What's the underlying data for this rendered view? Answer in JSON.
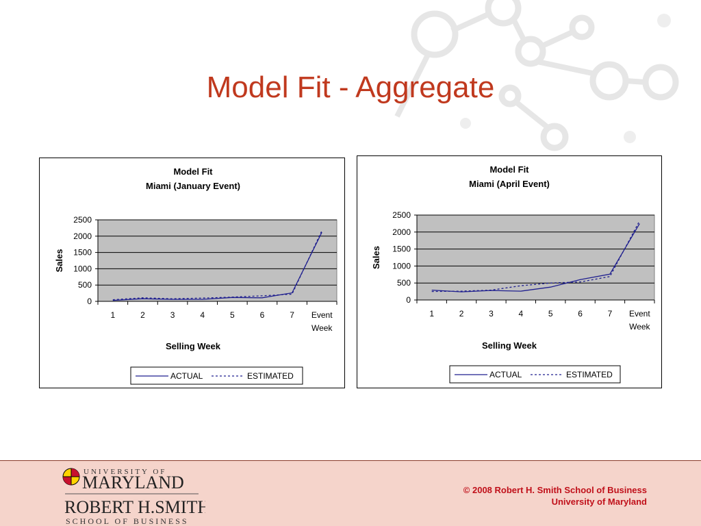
{
  "slide": {
    "title": "Model Fit - Aggregate"
  },
  "chart_data": [
    {
      "type": "line",
      "title": "Model Fit",
      "subtitle": "Miami (January Event)",
      "categories": [
        "1",
        "2",
        "3",
        "4",
        "5",
        "6",
        "7",
        "Event Week"
      ],
      "xlabel": "Selling Week",
      "ylabel": "Sales",
      "ylim": [
        0,
        2500
      ],
      "yticks": [
        "0",
        "500",
        "1000",
        "1500",
        "2000",
        "2500"
      ],
      "grid": true,
      "legend": "bottom",
      "series": [
        {
          "name": "ACTUAL",
          "style": "solid",
          "color": "#1f1f8f",
          "values": [
            30,
            80,
            60,
            60,
            120,
            110,
            260,
            2120
          ]
        },
        {
          "name": "ESTIMATED",
          "style": "dashed",
          "color": "#1f1f8f",
          "values": [
            50,
            110,
            80,
            100,
            130,
            170,
            220,
            2170
          ]
        }
      ]
    },
    {
      "type": "line",
      "title": "Model Fit",
      "subtitle": "Miami (April Event)",
      "categories": [
        "1",
        "2",
        "3",
        "4",
        "5",
        "6",
        "7",
        "Event Week"
      ],
      "xlabel": "Selling Week",
      "ylabel": "Sales",
      "ylim": [
        0,
        2500
      ],
      "yticks": [
        "0",
        "500",
        "1000",
        "1500",
        "2000",
        "2500"
      ],
      "grid": true,
      "legend": "bottom",
      "series": [
        {
          "name": "ACTUAL",
          "style": "solid",
          "color": "#1f1f8f",
          "values": [
            290,
            240,
            280,
            260,
            380,
            600,
            760,
            2250
          ]
        },
        {
          "name": "ESTIMATED",
          "style": "dashed",
          "color": "#1f1f8f",
          "values": [
            250,
            260,
            290,
            420,
            500,
            530,
            690,
            2330
          ]
        }
      ]
    }
  ],
  "footer": {
    "logo_university": "UNIVERSITY OF",
    "logo_maryland": "MARYLAND",
    "logo_school": "ROBERT H.SMITH",
    "logo_school_sub": "SCHOOL OF BUSINESS",
    "copyright_line1": "© 2008 Robert H. Smith School of Business",
    "copyright_line2": "University of Maryland"
  }
}
